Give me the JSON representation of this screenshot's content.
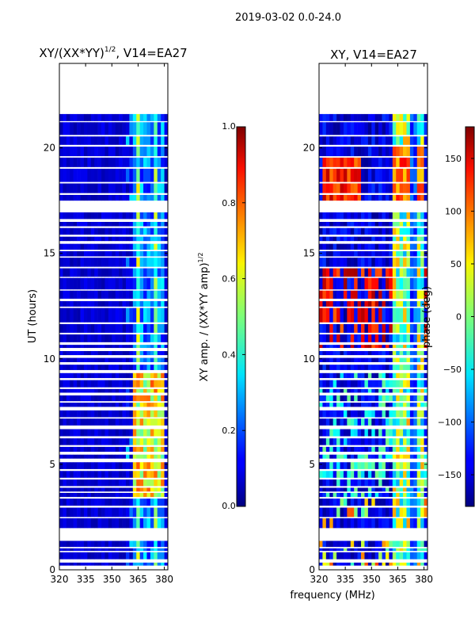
{
  "figure": {
    "suptitle": "2019-03-02 0.0-24.0",
    "xlabel": "frequency (MHz)"
  },
  "chart_data": [
    {
      "id": "left",
      "type": "heatmap",
      "title_main": "XY/(XX*YY)",
      "title_sup": "1/2",
      "title_tail": ", V14=EA27",
      "xlabel": "",
      "ylabel": "UT (hours)",
      "xlim": [
        320,
        382
      ],
      "ylim": [
        0,
        24
      ],
      "xticks": [
        320,
        335,
        350,
        365,
        380
      ],
      "yticks": [
        0,
        5,
        10,
        15,
        20
      ],
      "colorbar": {
        "label": "XY amp. / (XX*YY amp)",
        "label_sup": "1/2",
        "range": [
          0.0,
          1.0
        ],
        "ticks": [
          0.0,
          0.2,
          0.4,
          0.6,
          0.8,
          1.0
        ],
        "tick_labels": [
          "0.0",
          "0.2",
          "0.4",
          "0.6",
          "0.8",
          "1.0"
        ],
        "colormap": "jet"
      }
    },
    {
      "id": "right",
      "type": "heatmap",
      "title": "XY, V14=EA27",
      "xlabel": "",
      "ylabel": "",
      "xlim": [
        320,
        382
      ],
      "ylim": [
        0,
        24
      ],
      "xticks": [
        320,
        335,
        350,
        365,
        380
      ],
      "yticks": [
        0,
        5,
        10,
        15,
        20
      ],
      "colorbar": {
        "label": "phase (deg)",
        "range": [
          -180,
          180
        ],
        "ticks": [
          150,
          100,
          50,
          0,
          -50,
          -100,
          -150
        ],
        "tick_labels": [
          "150",
          "100",
          "50",
          "0",
          "−50",
          "−100",
          "−150"
        ],
        "colormap": "jet"
      }
    }
  ]
}
